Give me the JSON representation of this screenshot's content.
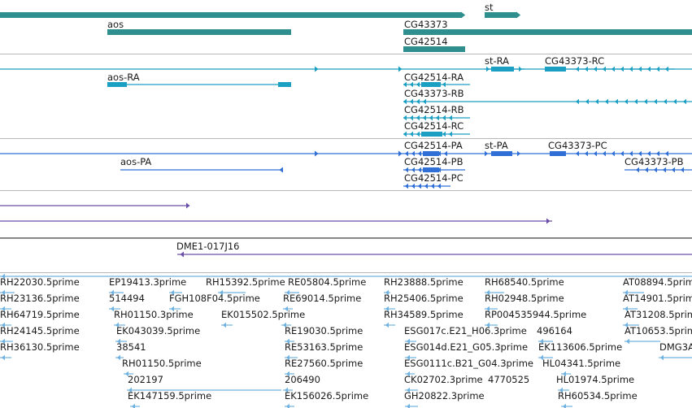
{
  "colors": {
    "gene": "#2f8f8f",
    "transcript": "#1b9fc2",
    "protein": "#2f6fd6",
    "clone": "#6a4fa8",
    "est": "#6fb2e0",
    "separator": "#b8b8b8"
  },
  "tracks": {
    "genes": {
      "labels": [
        "st",
        "aos",
        "CG43373",
        "CG42514"
      ]
    },
    "transcripts": {
      "labels": [
        "st-RA",
        "CG43373-RC",
        "aos-RA",
        "CG42514-RA",
        "CG43373-RB",
        "CG42514-RB",
        "CG42514-RC"
      ]
    },
    "proteins": {
      "labels": [
        "CG42514-PA",
        "st-PA",
        "CG43373-PC",
        "aos-PA",
        "CG42514-PB",
        "CG43373-PB",
        "CG42514-PC"
      ]
    },
    "clones": {
      "labels": [
        "DME1-017J16"
      ]
    },
    "ests": {
      "labels": [
        "RH22030.5prime",
        "EP19413.3prime",
        "RH15392.5prime",
        "RE05804.5prime",
        "RH23888.5prime",
        "RH68540.5prime",
        "AT08894.5prime",
        "RH23136.5prime",
        "514494",
        "FGH108F04.5prime",
        "RE69014.5prime",
        "RH25406.5prime",
        "RH02948.5prime",
        "AT14901.5prime",
        "RH64719.5prime",
        "RH01150.3prime",
        "EK015502.5prime",
        "RH34589.5prime",
        "RP004535944.5prime",
        "AT31208.5prime",
        "RH24145.5prime",
        "EK043039.5prime",
        "RE19030.5prime",
        "ESG017c.E21_H06.3prime",
        "496164",
        "AT10653.5prime",
        "RH36130.5prime",
        "38541",
        "RE53163.5prime",
        "ESG014d.E21_G05.3prime",
        "EK113606.5prime",
        "DMG3A",
        "RH01150.5prime",
        "RE27560.5prime",
        "ESG0111c.B21_G04.3prime",
        "HL04341.5prime",
        "202197",
        "206490",
        "CK02702.3prime",
        "4770525",
        "HL01974.5prime",
        "EK147159.5prime",
        "EK156026.5prime",
        "GH20822.3prime",
        "RH60534.5prime"
      ]
    }
  }
}
